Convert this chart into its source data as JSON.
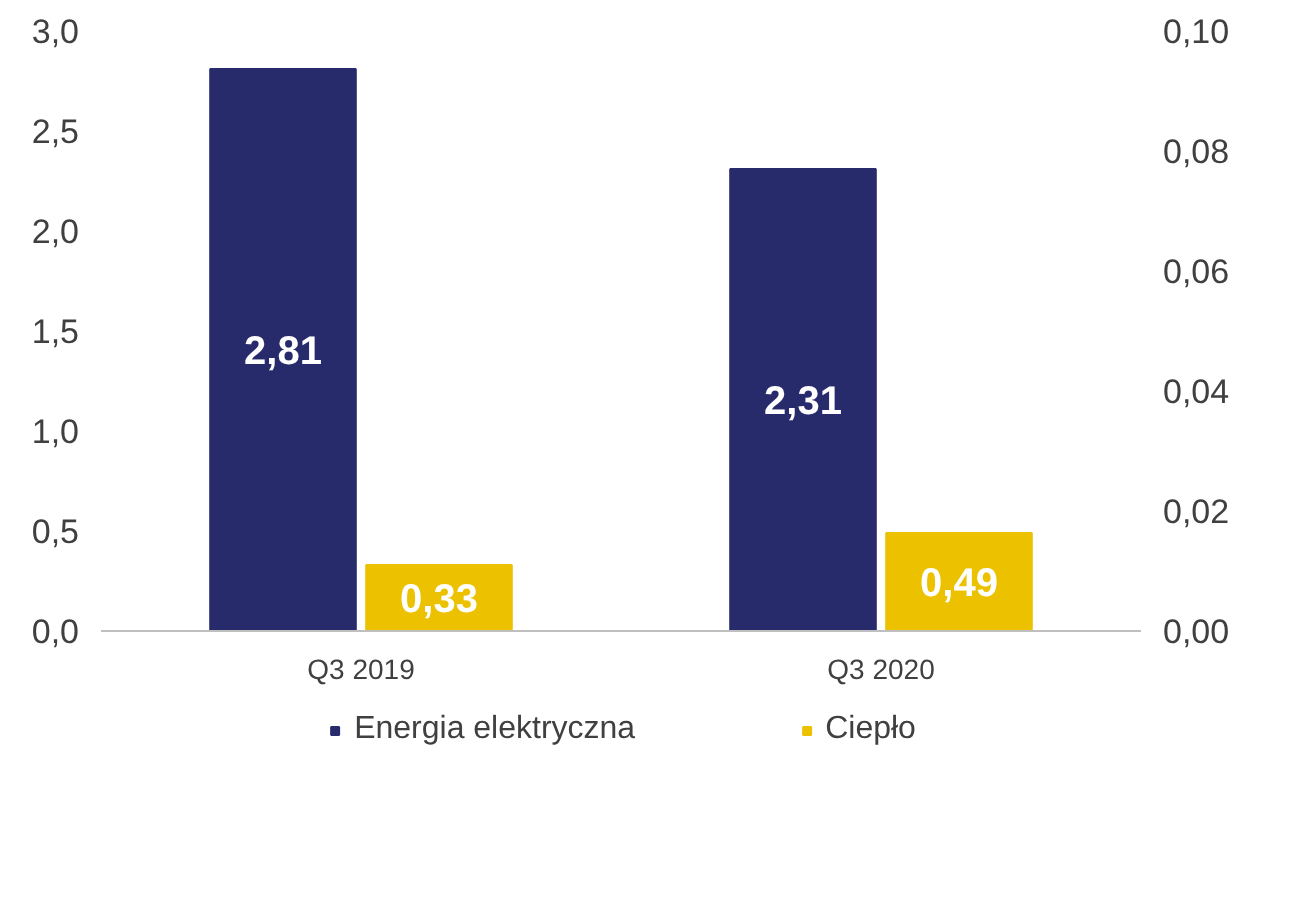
{
  "chart_data": {
    "type": "bar",
    "categories": [
      "Q3 2019",
      "Q3 2020"
    ],
    "series": [
      {
        "name": "Energia elektryczna",
        "color": "#272b6b",
        "values": [
          2.81,
          2.31
        ],
        "value_labels": [
          "2,81",
          "2,31"
        ]
      },
      {
        "name": "Ciepło",
        "color": "#ecc100",
        "values": [
          0.33,
          0.49
        ],
        "value_labels": [
          "0,33",
          "0,49"
        ]
      }
    ],
    "ylim": [
      0,
      3
    ],
    "yticks": [
      {
        "value": 0,
        "label": "0,0"
      },
      {
        "value": 0.5,
        "label": "0,5"
      },
      {
        "value": 1,
        "label": "1,0"
      },
      {
        "value": 1.5,
        "label": "1,5"
      },
      {
        "value": 2,
        "label": "2,0"
      },
      {
        "value": 2.5,
        "label": "2,5"
      },
      {
        "value": 3,
        "label": "3,0"
      }
    ],
    "y2lim": [
      0,
      0.1
    ],
    "y2ticks": [
      {
        "value": 0,
        "label": "0,00"
      },
      {
        "value": 0.02,
        "label": "0,02"
      },
      {
        "value": 0.04,
        "label": "0,04"
      },
      {
        "value": 0.06,
        "label": "0,06"
      },
      {
        "value": 0.08,
        "label": "0,08"
      },
      {
        "value": 0.1,
        "label": "0,10"
      }
    ],
    "grid": false,
    "legend": "bottom"
  }
}
